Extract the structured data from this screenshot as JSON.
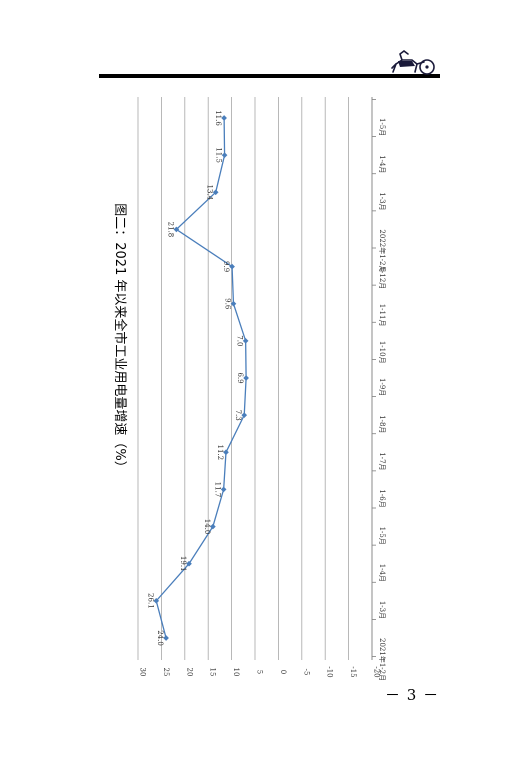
{
  "page": {
    "number": "－ 3 －"
  },
  "logo": {
    "icon": "horse-cart-emblem-icon"
  },
  "chart_data": {
    "type": "line",
    "title": "图二：2021 年以来全市工业用电量增速（%）",
    "categories": [
      "2021年1-2月",
      "1-3月",
      "1-4月",
      "1-5月",
      "1-6月",
      "1-7月",
      "1-8月",
      "1-9月",
      "1-10月",
      "1-11月",
      "1-12月",
      "2022年1-2月",
      "1-3月",
      "1-4月",
      "1-5月"
    ],
    "series": [
      {
        "values": [
          24.0,
          26.1,
          19.1,
          14.0,
          11.7,
          11.2,
          7.3,
          6.9,
          7.0,
          9.6,
          9.9,
          21.8,
          13.4,
          11.5,
          11.6
        ],
        "labels": [
          "24.0",
          "26.1",
          "19.1",
          "14.0",
          "11.7",
          "11.2",
          "7.3",
          "6.9",
          "7.0",
          "9.6",
          "9.9",
          "21.8",
          "13.4",
          "11.5",
          "11.6"
        ],
        "color": "#4a7ebb"
      }
    ],
    "ylim": [
      -20,
      30
    ],
    "yticks": [
      "30",
      "25",
      "20",
      "15",
      "10",
      "5",
      "0",
      "-5",
      "-10",
      "-15",
      "-20"
    ],
    "grid": true,
    "orientation": "rotated-90-clockwise",
    "gridColor": "#a6a6a6"
  }
}
